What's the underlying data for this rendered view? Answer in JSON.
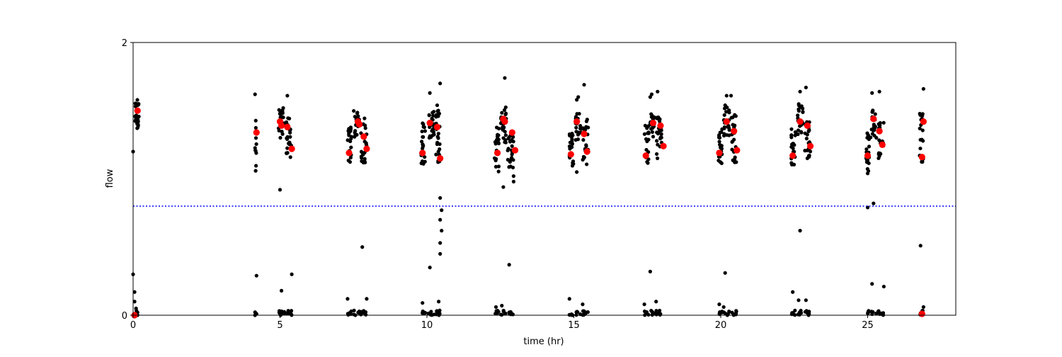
{
  "chart_data": {
    "type": "scatter",
    "title": "",
    "xlabel": "time (hr)",
    "ylabel": "flow",
    "xlim": [
      0,
      28
    ],
    "ylim": [
      0,
      2
    ],
    "xticks": [
      0,
      5,
      10,
      15,
      20,
      25
    ],
    "xtick_labels": [
      "0",
      "5",
      "10",
      "15",
      "20",
      "25"
    ],
    "yticks": [
      0,
      2
    ],
    "ytick_labels": [
      "0",
      "2"
    ],
    "grid": false,
    "legend": "none",
    "reference_line": {
      "y": 0.8,
      "style": "dotted",
      "color": "#0000ff"
    },
    "colors": {
      "raw": "#000000",
      "mean": "#ff0000",
      "reference": "#0000ff",
      "frame": "#000000"
    },
    "series": [
      {
        "role": "raw",
        "clusters": [
          {
            "x0": 0.05,
            "x1": 0.2,
            "ymin": 1.35,
            "ymax": 1.58,
            "n": 28,
            "outliers": [
              [
                0.0,
                1.2
              ],
              [
                0.0,
                0.3
              ],
              [
                0.05,
                0.17
              ],
              [
                0.05,
                0.1
              ],
              [
                0.1,
                0.05
              ],
              [
                0.15,
                0.02
              ]
            ],
            "low_n": 5
          },
          {
            "x0": 4.15,
            "x1": 4.2,
            "ymin": 0.95,
            "ymax": 1.45,
            "n": 10,
            "outliers": [
              [
                4.15,
                1.62
              ],
              [
                4.2,
                0.29
              ],
              [
                4.15,
                0.0
              ],
              [
                4.2,
                0.01
              ]
            ],
            "low_n": 2
          },
          {
            "x0": 4.95,
            "x1": 5.15,
            "ymin": 1.3,
            "ymax": 1.52,
            "n": 26,
            "outliers": [
              [
                5.0,
                0.92
              ],
              [
                5.05,
                0.18
              ]
            ],
            "low_n": 8
          },
          {
            "x0": 5.2,
            "x1": 5.4,
            "ymin": 1.15,
            "ymax": 1.45,
            "n": 22,
            "outliers": [
              [
                5.25,
                1.61
              ],
              [
                5.4,
                0.3
              ]
            ],
            "low_n": 8
          },
          {
            "x0": 7.3,
            "x1": 7.45,
            "ymin": 1.1,
            "ymax": 1.38,
            "n": 20,
            "outliers": [
              [
                7.3,
                0.12
              ]
            ],
            "low_n": 6
          },
          {
            "x0": 7.5,
            "x1": 7.7,
            "ymin": 1.3,
            "ymax": 1.5,
            "n": 20,
            "outliers": [],
            "low_n": 6
          },
          {
            "x0": 7.75,
            "x1": 7.95,
            "ymin": 1.1,
            "ymax": 1.45,
            "n": 24,
            "outliers": [
              [
                7.8,
                0.5
              ],
              [
                7.95,
                0.12
              ]
            ],
            "low_n": 8
          },
          {
            "x0": 9.8,
            "x1": 9.95,
            "ymin": 1.1,
            "ymax": 1.42,
            "n": 20,
            "outliers": [
              [
                9.85,
                0.09
              ]
            ],
            "low_n": 6
          },
          {
            "x0": 10.05,
            "x1": 10.25,
            "ymin": 1.3,
            "ymax": 1.5,
            "n": 22,
            "outliers": [
              [
                10.1,
                1.63
              ],
              [
                10.1,
                0.35
              ]
            ],
            "low_n": 6
          },
          {
            "x0": 10.3,
            "x1": 10.45,
            "ymin": 1.12,
            "ymax": 1.55,
            "n": 26,
            "outliers": [
              [
                10.45,
                1.7
              ],
              [
                10.45,
                0.86
              ],
              [
                10.5,
                0.77
              ],
              [
                10.45,
                0.7
              ],
              [
                10.5,
                0.62
              ],
              [
                10.45,
                0.53
              ],
              [
                10.45,
                0.45
              ],
              [
                10.4,
                0.1
              ]
            ],
            "low_n": 10
          },
          {
            "x0": 12.3,
            "x1": 12.45,
            "ymin": 1.05,
            "ymax": 1.38,
            "n": 20,
            "outliers": [
              [
                12.35,
                0.06
              ]
            ],
            "low_n": 6
          },
          {
            "x0": 12.5,
            "x1": 12.7,
            "ymin": 1.25,
            "ymax": 1.55,
            "n": 22,
            "outliers": [
              [
                12.65,
                1.74
              ],
              [
                12.6,
                0.94
              ],
              [
                12.55,
                0.07
              ]
            ],
            "low_n": 6
          },
          {
            "x0": 12.75,
            "x1": 12.95,
            "ymin": 1.08,
            "ymax": 1.35,
            "n": 22,
            "outliers": [
              [
                12.8,
                0.37
              ],
              [
                12.95,
                1.02
              ],
              [
                12.95,
                0.98
              ]
            ],
            "low_n": 8
          },
          {
            "x0": 14.85,
            "x1": 15.0,
            "ymin": 1.08,
            "ymax": 1.35,
            "n": 20,
            "outliers": [
              [
                14.85,
                0.12
              ]
            ],
            "low_n": 6
          },
          {
            "x0": 15.05,
            "x1": 15.25,
            "ymin": 1.28,
            "ymax": 1.5,
            "n": 20,
            "outliers": [
              [
                15.15,
                1.6
              ],
              [
                15.1,
                1.58
              ],
              [
                15.1,
                1.05
              ]
            ],
            "low_n": 6
          },
          {
            "x0": 15.3,
            "x1": 15.5,
            "ymin": 1.1,
            "ymax": 1.45,
            "n": 22,
            "outliers": [
              [
                15.35,
                1.69
              ],
              [
                15.3,
                0.08
              ]
            ],
            "low_n": 8
          },
          {
            "x0": 17.4,
            "x1": 17.55,
            "ymin": 1.1,
            "ymax": 1.4,
            "n": 20,
            "outliers": [
              [
                17.4,
                0.08
              ]
            ],
            "low_n": 6
          },
          {
            "x0": 17.6,
            "x1": 17.75,
            "ymin": 1.3,
            "ymax": 1.48,
            "n": 20,
            "outliers": [
              [
                17.65,
                1.62
              ],
              [
                17.6,
                1.6
              ],
              [
                17.6,
                0.32
              ]
            ],
            "low_n": 6
          },
          {
            "x0": 17.8,
            "x1": 18.0,
            "ymin": 1.15,
            "ymax": 1.5,
            "n": 22,
            "outliers": [
              [
                17.85,
                1.64
              ],
              [
                17.8,
                0.1
              ]
            ],
            "low_n": 8
          },
          {
            "x0": 19.9,
            "x1": 20.05,
            "ymin": 1.1,
            "ymax": 1.38,
            "n": 20,
            "outliers": [
              [
                19.95,
                0.08
              ]
            ],
            "low_n": 6
          },
          {
            "x0": 20.1,
            "x1": 20.3,
            "ymin": 1.3,
            "ymax": 1.55,
            "n": 22,
            "outliers": [
              [
                20.2,
                1.61
              ],
              [
                20.15,
                0.31
              ],
              [
                20.1,
                0.06
              ]
            ],
            "low_n": 6
          },
          {
            "x0": 20.35,
            "x1": 20.55,
            "ymin": 1.12,
            "ymax": 1.48,
            "n": 24,
            "outliers": [
              [
                20.35,
                1.61
              ]
            ],
            "low_n": 8
          },
          {
            "x0": 22.4,
            "x1": 22.55,
            "ymin": 1.1,
            "ymax": 1.38,
            "n": 20,
            "outliers": [
              [
                22.45,
                0.17
              ]
            ],
            "low_n": 6
          },
          {
            "x0": 22.6,
            "x1": 22.8,
            "ymin": 1.32,
            "ymax": 1.55,
            "n": 22,
            "outliers": [
              [
                22.7,
                1.64
              ],
              [
                22.7,
                0.62
              ],
              [
                22.65,
                0.11
              ]
            ],
            "low_n": 6
          },
          {
            "x0": 22.85,
            "x1": 23.05,
            "ymin": 1.15,
            "ymax": 1.45,
            "n": 22,
            "outliers": [
              [
                22.9,
                1.67
              ],
              [
                22.9,
                0.11
              ]
            ],
            "low_n": 8
          },
          {
            "x0": 24.95,
            "x1": 25.05,
            "ymin": 1.05,
            "ymax": 1.38,
            "n": 20,
            "outliers": [
              [
                25.0,
                1.04
              ],
              [
                25.0,
                0.79
              ]
            ],
            "low_n": 6
          },
          {
            "x0": 25.1,
            "x1": 25.3,
            "ymin": 1.3,
            "ymax": 1.52,
            "n": 22,
            "outliers": [
              [
                25.15,
                1.63
              ],
              [
                25.2,
                0.82
              ],
              [
                25.15,
                0.23
              ]
            ],
            "low_n": 6
          },
          {
            "x0": 25.35,
            "x1": 25.55,
            "ymin": 1.15,
            "ymax": 1.45,
            "n": 20,
            "outliers": [
              [
                25.4,
                1.64
              ],
              [
                25.55,
                0.21
              ]
            ],
            "low_n": 8
          },
          {
            "x0": 26.75,
            "x1": 26.9,
            "ymin": 1.12,
            "ymax": 1.48,
            "n": 20,
            "outliers": [
              [
                26.9,
                1.66
              ],
              [
                26.8,
                0.51
              ],
              [
                26.9,
                0.06
              ]
            ],
            "low_n": 6
          }
        ]
      },
      {
        "role": "mean",
        "points": [
          [
            0.15,
            1.5
          ],
          [
            4.2,
            1.34
          ],
          [
            5.0,
            1.42
          ],
          [
            5.05,
            1.39
          ],
          [
            5.25,
            1.38
          ],
          [
            5.4,
            1.22
          ],
          [
            7.35,
            1.19
          ],
          [
            7.65,
            1.42
          ],
          [
            7.7,
            1.4
          ],
          [
            7.85,
            1.31
          ],
          [
            7.95,
            1.22
          ],
          [
            9.85,
            1.19
          ],
          [
            10.1,
            1.41
          ],
          [
            10.35,
            1.38
          ],
          [
            10.45,
            1.15
          ],
          [
            12.4,
            1.19
          ],
          [
            12.6,
            1.44
          ],
          [
            12.65,
            1.42
          ],
          [
            12.9,
            1.34
          ],
          [
            13.0,
            1.21
          ],
          [
            14.9,
            1.18
          ],
          [
            15.1,
            1.42
          ],
          [
            15.35,
            1.33
          ],
          [
            15.45,
            1.2
          ],
          [
            17.45,
            1.17
          ],
          [
            17.7,
            1.41
          ],
          [
            17.95,
            1.39
          ],
          [
            18.05,
            1.24
          ],
          [
            19.95,
            1.19
          ],
          [
            20.2,
            1.42
          ],
          [
            20.45,
            1.35
          ],
          [
            20.55,
            1.21
          ],
          [
            22.45,
            1.17
          ],
          [
            22.7,
            1.42
          ],
          [
            22.95,
            1.39
          ],
          [
            23.05,
            1.24
          ],
          [
            25.0,
            1.17
          ],
          [
            25.2,
            1.44
          ],
          [
            25.4,
            1.35
          ],
          [
            25.5,
            1.25
          ],
          [
            26.85,
            1.16
          ],
          [
            26.9,
            1.42
          ],
          [
            26.85,
            0.01
          ],
          [
            0.05,
            0.0
          ]
        ]
      }
    ]
  }
}
